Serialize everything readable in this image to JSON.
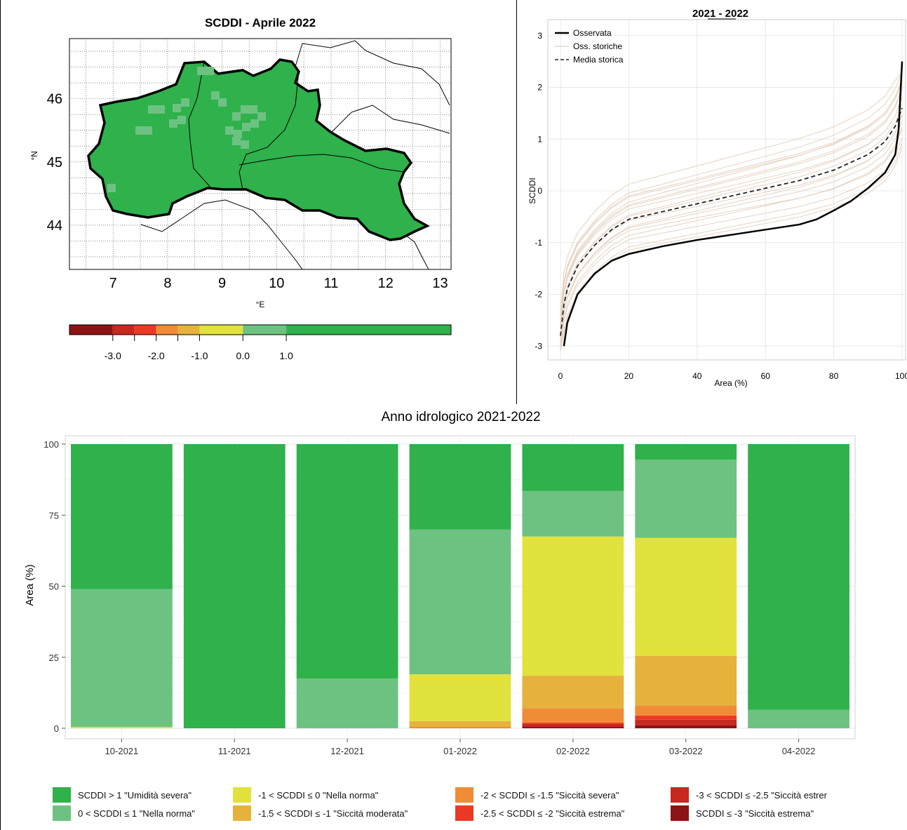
{
  "map_panel": {
    "title": "SCDDI - Aprile 2022",
    "x_ticks": [
      "7",
      "8",
      "9",
      "10",
      "11",
      "12",
      "13"
    ],
    "y_ticks": [
      "46",
      "45",
      "44"
    ],
    "x_label": "°E",
    "y_label": "°N",
    "colorbar": {
      "colors": [
        "#8b1414",
        "#c8281e",
        "#ea3a26",
        "#f08c36",
        "#e6b23c",
        "#e2e23c",
        "#6dc282",
        "#2fb14b"
      ],
      "tick_labels": [
        "-3.0",
        "-2.0",
        "-1.0",
        "0.0",
        "1.0"
      ]
    },
    "region_fill": "#2fb14b",
    "patch_fill": "#6dc282"
  },
  "curve_panel": {
    "title": "2021 - 2022",
    "legend": [
      {
        "label": "Osservata",
        "style": "solid-black"
      },
      {
        "label": "Oss. storiche",
        "style": "light"
      },
      {
        "label": "Media storica",
        "style": "dashed"
      }
    ],
    "colors": {
      "observed": "#000000",
      "historical": "#e6d3c2",
      "mean": "#222222"
    }
  },
  "bars_panel": {
    "legend": [
      {
        "label": "SCDDI > 1 \"Umidità severa\"",
        "color": "#2fb14b"
      },
      {
        "label": "0 < SCDDI ≤ 1 \"Nella norma\"",
        "color": "#6dc282"
      },
      {
        "label": "-1 < SCDDI ≤ 0 \"Nella norma\"",
        "color": "#e2e23c"
      },
      {
        "label": "-1.5 < SCDDI ≤ -1 \"Siccità moderata\"",
        "color": "#e6b23c"
      },
      {
        "label": "-2 < SCDDI ≤ -1.5 \"Siccità severa\"",
        "color": "#f08c36"
      },
      {
        "label": "-2.5 < SCDDI ≤ -2 \"Siccità estrema\"",
        "color": "#ea3a26"
      },
      {
        "label": "-3 < SCDDI ≤ -2.5 \"Siccità estrer",
        "color": "#c8281e"
      },
      {
        "label": "SCDDI ≤ -3 \"Siccità estrema\"",
        "color": "#8b1414"
      }
    ]
  },
  "chart_data": [
    {
      "type": "line",
      "title": "2021 - 2022",
      "xlabel": "Area (%)",
      "ylabel": "SCDDI",
      "xlim": [
        0,
        100
      ],
      "ylim": [
        -3.2,
        3.2
      ],
      "x_ticks": [
        0,
        20,
        40,
        60,
        80,
        100
      ],
      "x_tick_labels": [
        "0",
        "20",
        "40",
        "60",
        "80",
        "100"
      ],
      "y_ticks": [
        -3,
        -2,
        -1,
        0,
        1,
        2,
        3
      ],
      "y_tick_labels": [
        "-3",
        "-2",
        "-1",
        "0",
        "1",
        "2",
        "3"
      ],
      "grid": true,
      "legend_position": "top-left",
      "series": [
        {
          "name": "Osservata",
          "x": [
            1,
            2,
            5,
            10,
            15,
            20,
            30,
            40,
            50,
            60,
            70,
            75,
            80,
            85,
            90,
            95,
            98,
            99,
            100
          ],
          "y": [
            -3.0,
            -2.55,
            -2.0,
            -1.6,
            -1.35,
            -1.22,
            -1.07,
            -0.95,
            -0.85,
            -0.75,
            -0.65,
            -0.55,
            -0.38,
            -0.2,
            0.05,
            0.35,
            0.7,
            1.2,
            2.5
          ]
        },
        {
          "name": "Media storica",
          "x": [
            0,
            1,
            2,
            5,
            10,
            15,
            20,
            30,
            40,
            50,
            60,
            70,
            80,
            90,
            95,
            98,
            100
          ],
          "y": [
            -2.8,
            -2.2,
            -1.9,
            -1.45,
            -1.05,
            -0.75,
            -0.55,
            -0.4,
            -0.25,
            -0.1,
            0.05,
            0.2,
            0.4,
            0.7,
            0.95,
            1.25,
            1.6
          ]
        }
      ]
    },
    {
      "type": "bar",
      "stacked": true,
      "title": "Anno idrologico 2021-2022",
      "xlabel": "",
      "ylabel": "Area (%)",
      "ylim": [
        0,
        100
      ],
      "y_ticks": [
        0,
        25,
        50,
        75,
        100
      ],
      "y_tick_labels": [
        "0",
        "25",
        "50",
        "75",
        "100"
      ],
      "grid": true,
      "legend_position": "bottom",
      "categories": [
        "10-2021",
        "11-2021",
        "12-2021",
        "01-2022",
        "02-2022",
        "03-2022",
        "04-2022"
      ],
      "series": [
        {
          "name": "SCDDI ≤ -3 \"Siccità estrema\"",
          "color": "#8b1414",
          "values": [
            0,
            0,
            0,
            0,
            0.5,
            1,
            0
          ]
        },
        {
          "name": "-3 < SCDDI ≤ -2.5 \"Siccità estrer",
          "color": "#c8281e",
          "values": [
            0,
            0,
            0,
            0,
            1,
            2,
            0
          ]
        },
        {
          "name": "-2.5 < SCDDI ≤ -2 \"Siccità estrema\"",
          "color": "#ea3a26",
          "values": [
            0,
            0,
            0,
            0,
            0.5,
            1.5,
            0
          ]
        },
        {
          "name": "-2 < SCDDI ≤ -1.5 \"Siccità severa\"",
          "color": "#f08c36",
          "values": [
            0,
            0,
            0,
            0.5,
            5,
            3.5,
            0
          ]
        },
        {
          "name": "-1.5 < SCDDI ≤ -1 \"Siccità moderata\"",
          "color": "#e6b23c",
          "values": [
            0,
            0,
            0,
            2,
            11.5,
            17.5,
            0
          ]
        },
        {
          "name": "-1 < SCDDI ≤ 0 \"Nella norma\"",
          "color": "#e2e23c",
          "values": [
            0.5,
            0,
            0,
            16.5,
            49,
            41.5,
            0
          ]
        },
        {
          "name": "0 < SCDDI ≤ 1 \"Nella norma\"",
          "color": "#6dc282",
          "values": [
            48.5,
            0,
            17.5,
            51,
            16,
            27.5,
            6.5
          ]
        },
        {
          "name": "SCDDI > 1 \"Umidità severa\"",
          "color": "#2fb14b",
          "values": [
            51,
            100,
            82.5,
            30,
            16.5,
            5.5,
            93.5
          ]
        }
      ]
    }
  ]
}
